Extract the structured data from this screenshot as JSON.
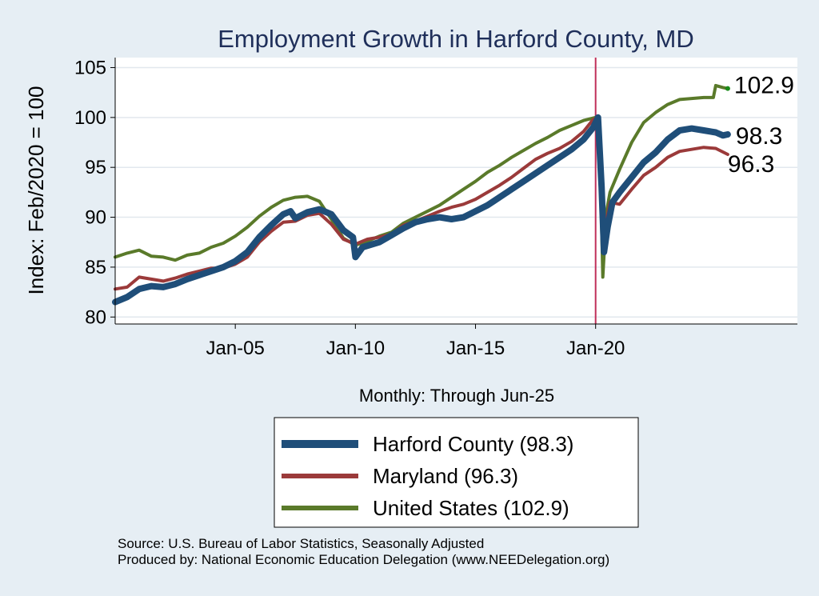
{
  "chart_data": {
    "type": "line",
    "title": "Employment Growth in Harford  County, MD",
    "ylabel": "Index: Feb/2020 = 100",
    "xlabel": "Monthly: Through Jun-25",
    "ylim": [
      79.3,
      106.0
    ],
    "yticks": [
      80,
      85,
      90,
      95,
      100,
      105
    ],
    "xlim": [
      2000.0,
      2028.4
    ],
    "xticks": [
      {
        "label": "Jan-05",
        "x": 2005.0
      },
      {
        "label": "Jan-10",
        "x": 2010.0
      },
      {
        "label": "Jan-15",
        "x": 2015.0
      },
      {
        "label": "Jan-20",
        "x": 2020.0
      }
    ],
    "vline_x": 2020.0,
    "grid": true,
    "legend_position": "bottom",
    "colors": {
      "harford": "#1f4e79",
      "maryland": "#9b3a3a",
      "us": "#5a7a2a",
      "vline": "#c0305a",
      "end_dot": "#1a8a1a"
    },
    "series": [
      {
        "name": "Harford  County (98.3)",
        "key": "harford",
        "end_label": "98.3",
        "points": [
          [
            2000.0,
            81.5
          ],
          [
            2000.5,
            82.0
          ],
          [
            2001.0,
            82.8
          ],
          [
            2001.5,
            83.1
          ],
          [
            2002.0,
            83.0
          ],
          [
            2002.5,
            83.3
          ],
          [
            2003.0,
            83.8
          ],
          [
            2003.5,
            84.2
          ],
          [
            2004.0,
            84.6
          ],
          [
            2004.5,
            85.0
          ],
          [
            2005.0,
            85.6
          ],
          [
            2005.5,
            86.5
          ],
          [
            2006.0,
            88.0
          ],
          [
            2006.5,
            89.2
          ],
          [
            2007.0,
            90.3
          ],
          [
            2007.3,
            90.6
          ],
          [
            2007.5,
            89.9
          ],
          [
            2008.0,
            90.5
          ],
          [
            2008.5,
            90.8
          ],
          [
            2009.0,
            90.3
          ],
          [
            2009.5,
            88.7
          ],
          [
            2009.9,
            88.0
          ],
          [
            2010.0,
            86.0
          ],
          [
            2010.3,
            87.0
          ],
          [
            2011.0,
            87.5
          ],
          [
            2011.5,
            88.2
          ],
          [
            2012.0,
            88.9
          ],
          [
            2012.5,
            89.5
          ],
          [
            2013.0,
            89.8
          ],
          [
            2013.5,
            90.0
          ],
          [
            2014.0,
            89.8
          ],
          [
            2014.5,
            90.0
          ],
          [
            2015.0,
            90.6
          ],
          [
            2015.5,
            91.2
          ],
          [
            2016.0,
            92.0
          ],
          [
            2016.5,
            92.8
          ],
          [
            2017.0,
            93.6
          ],
          [
            2017.5,
            94.4
          ],
          [
            2018.0,
            95.2
          ],
          [
            2018.5,
            96.0
          ],
          [
            2019.0,
            96.8
          ],
          [
            2019.5,
            97.8
          ],
          [
            2019.9,
            99.0
          ],
          [
            2020.1,
            100.0
          ],
          [
            2020.25,
            93.0
          ],
          [
            2020.35,
            86.5
          ],
          [
            2020.5,
            89.0
          ],
          [
            2020.7,
            91.5
          ],
          [
            2021.0,
            92.5
          ],
          [
            2021.5,
            94.0
          ],
          [
            2022.0,
            95.5
          ],
          [
            2022.5,
            96.5
          ],
          [
            2023.0,
            97.8
          ],
          [
            2023.5,
            98.7
          ],
          [
            2024.0,
            98.9
          ],
          [
            2024.5,
            98.7
          ],
          [
            2025.0,
            98.5
          ],
          [
            2025.3,
            98.2
          ],
          [
            2025.5,
            98.3
          ]
        ]
      },
      {
        "name": "Maryland (96.3)",
        "key": "maryland",
        "end_label": "96.3",
        "points": [
          [
            2000.0,
            82.8
          ],
          [
            2000.5,
            83.0
          ],
          [
            2001.0,
            84.0
          ],
          [
            2001.5,
            83.8
          ],
          [
            2002.0,
            83.6
          ],
          [
            2002.5,
            83.9
          ],
          [
            2003.0,
            84.3
          ],
          [
            2003.5,
            84.6
          ],
          [
            2004.0,
            84.9
          ],
          [
            2004.5,
            84.9
          ],
          [
            2005.0,
            85.3
          ],
          [
            2005.5,
            86.0
          ],
          [
            2006.0,
            87.5
          ],
          [
            2006.5,
            88.6
          ],
          [
            2007.0,
            89.5
          ],
          [
            2007.5,
            89.6
          ],
          [
            2008.0,
            90.2
          ],
          [
            2008.5,
            90.4
          ],
          [
            2009.0,
            89.3
          ],
          [
            2009.5,
            87.8
          ],
          [
            2010.0,
            87.3
          ],
          [
            2010.5,
            87.8
          ],
          [
            2011.0,
            88.0
          ],
          [
            2011.5,
            88.3
          ],
          [
            2012.0,
            89.2
          ],
          [
            2012.5,
            89.6
          ],
          [
            2013.0,
            90.1
          ],
          [
            2013.5,
            90.6
          ],
          [
            2014.0,
            91.0
          ],
          [
            2014.5,
            91.3
          ],
          [
            2015.0,
            91.8
          ],
          [
            2015.5,
            92.5
          ],
          [
            2016.0,
            93.2
          ],
          [
            2016.5,
            94.0
          ],
          [
            2017.0,
            94.9
          ],
          [
            2017.5,
            95.8
          ],
          [
            2018.0,
            96.4
          ],
          [
            2018.5,
            96.9
          ],
          [
            2019.0,
            97.6
          ],
          [
            2019.5,
            98.6
          ],
          [
            2019.9,
            99.8
          ],
          [
            2020.1,
            100.0
          ],
          [
            2020.25,
            93.5
          ],
          [
            2020.35,
            88.5
          ],
          [
            2020.6,
            91.5
          ],
          [
            2021.0,
            91.3
          ],
          [
            2021.5,
            92.8
          ],
          [
            2022.0,
            94.2
          ],
          [
            2022.5,
            95.0
          ],
          [
            2023.0,
            96.0
          ],
          [
            2023.5,
            96.6
          ],
          [
            2024.0,
            96.8
          ],
          [
            2024.5,
            97.0
          ],
          [
            2025.0,
            96.9
          ],
          [
            2025.5,
            96.3
          ]
        ]
      },
      {
        "name": "United States (102.9)",
        "key": "us",
        "end_label": "102.9",
        "points": [
          [
            2000.0,
            86.0
          ],
          [
            2000.5,
            86.4
          ],
          [
            2001.0,
            86.7
          ],
          [
            2001.5,
            86.1
          ],
          [
            2002.0,
            86.0
          ],
          [
            2002.5,
            85.7
          ],
          [
            2003.0,
            86.2
          ],
          [
            2003.5,
            86.4
          ],
          [
            2004.0,
            87.0
          ],
          [
            2004.5,
            87.4
          ],
          [
            2005.0,
            88.1
          ],
          [
            2005.5,
            89.0
          ],
          [
            2006.0,
            90.1
          ],
          [
            2006.5,
            91.0
          ],
          [
            2007.0,
            91.7
          ],
          [
            2007.5,
            92.0
          ],
          [
            2008.0,
            92.1
          ],
          [
            2008.5,
            91.6
          ],
          [
            2009.0,
            89.8
          ],
          [
            2009.5,
            87.9
          ],
          [
            2010.0,
            87.2
          ],
          [
            2010.5,
            87.6
          ],
          [
            2011.0,
            88.1
          ],
          [
            2011.5,
            88.5
          ],
          [
            2012.0,
            89.4
          ],
          [
            2012.5,
            90.0
          ],
          [
            2013.0,
            90.6
          ],
          [
            2013.5,
            91.2
          ],
          [
            2014.0,
            92.0
          ],
          [
            2014.5,
            92.8
          ],
          [
            2015.0,
            93.6
          ],
          [
            2015.5,
            94.5
          ],
          [
            2016.0,
            95.2
          ],
          [
            2016.5,
            96.0
          ],
          [
            2017.0,
            96.7
          ],
          [
            2017.5,
            97.4
          ],
          [
            2018.0,
            98.0
          ],
          [
            2018.5,
            98.7
          ],
          [
            2019.0,
            99.2
          ],
          [
            2019.5,
            99.7
          ],
          [
            2020.0,
            100.0
          ],
          [
            2020.15,
            99.8
          ],
          [
            2020.3,
            84.0
          ],
          [
            2020.45,
            90.5
          ],
          [
            2020.6,
            92.5
          ],
          [
            2021.0,
            94.8
          ],
          [
            2021.5,
            97.5
          ],
          [
            2022.0,
            99.5
          ],
          [
            2022.5,
            100.5
          ],
          [
            2023.0,
            101.3
          ],
          [
            2023.5,
            101.8
          ],
          [
            2024.0,
            101.9
          ],
          [
            2024.5,
            102.0
          ],
          [
            2024.9,
            102.0
          ],
          [
            2025.0,
            103.2
          ],
          [
            2025.3,
            103.0
          ],
          [
            2025.5,
            102.9
          ]
        ]
      }
    ]
  },
  "source_lines": [
    "Source: U.S. Bureau of Labor Statistics, Seasonally Adjusted",
    "Produced by: National Economic Education Delegation (www.NEEDelegation.org)"
  ]
}
